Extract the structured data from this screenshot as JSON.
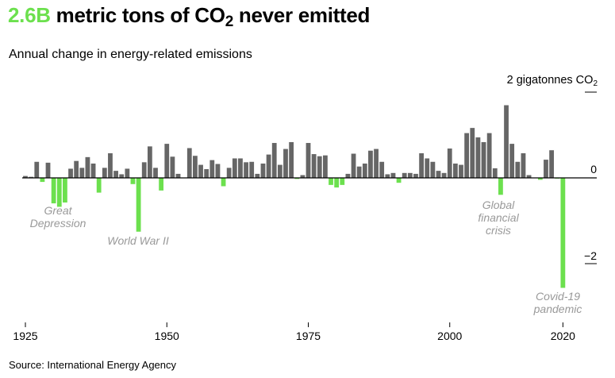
{
  "title": {
    "accent": "2.6B",
    "text": " metric tons of CO",
    "sub": "2",
    "tail": " never emitted"
  },
  "subtitle": "Annual change in energy-related emissions",
  "unit_label": {
    "text": "2 gigatonnes CO",
    "sub": "2"
  },
  "source": "Source: International Energy Agency",
  "colors": {
    "positive": "#666666",
    "negative": "#6ce04e",
    "annotation": "#999999"
  },
  "chart_data": {
    "type": "bar",
    "title": "2.6B metric tons of CO2 never emitted",
    "subtitle": "Annual change in energy-related emissions",
    "xlabel": "",
    "ylabel": "gigatonnes CO2",
    "ylim": [
      -2.9,
      2.2
    ],
    "xlim": [
      1925,
      2023
    ],
    "x_ticks": [
      1925,
      1950,
      1975,
      2000,
      2020
    ],
    "y_ticks": [
      {
        "value": 2,
        "label": "2 gigatonnes CO2"
      },
      {
        "value": 0,
        "label": "0"
      },
      {
        "value": -2,
        "label": "-2"
      }
    ],
    "grid": false,
    "x": [
      1925,
      1926,
      1927,
      1928,
      1929,
      1930,
      1931,
      1932,
      1933,
      1934,
      1935,
      1936,
      1937,
      1938,
      1939,
      1940,
      1941,
      1942,
      1943,
      1944,
      1945,
      1946,
      1947,
      1948,
      1949,
      1950,
      1951,
      1952,
      1953,
      1954,
      1955,
      1956,
      1957,
      1958,
      1959,
      1960,
      1961,
      1962,
      1963,
      1964,
      1965,
      1966,
      1967,
      1968,
      1969,
      1970,
      1971,
      1972,
      1973,
      1974,
      1975,
      1976,
      1977,
      1978,
      1979,
      1980,
      1981,
      1982,
      1983,
      1984,
      1985,
      1986,
      1987,
      1988,
      1989,
      1990,
      1991,
      1992,
      1993,
      1994,
      1995,
      1996,
      1997,
      1998,
      1999,
      2000,
      2001,
      2002,
      2003,
      2004,
      2005,
      2006,
      2007,
      2008,
      2009,
      2010,
      2011,
      2012,
      2013,
      2014,
      2015,
      2016,
      2017,
      2018,
      2019,
      2020
    ],
    "values": [
      0.05,
      0.03,
      0.38,
      -0.1,
      0.36,
      -0.6,
      -0.68,
      -0.58,
      0.22,
      0.4,
      0.24,
      0.49,
      0.34,
      -0.35,
      0.24,
      0.58,
      0.17,
      0.09,
      0.22,
      -0.15,
      -1.26,
      0.37,
      0.74,
      0.24,
      -0.3,
      0.8,
      0.5,
      0.1,
      0.0,
      0.7,
      0.52,
      0.31,
      0.21,
      0.42,
      0.33,
      -0.2,
      0.24,
      0.46,
      0.46,
      0.37,
      0.38,
      0.1,
      0.34,
      0.55,
      0.82,
      0.31,
      0.68,
      0.84,
      -0.03,
      0.07,
      0.82,
      0.56,
      0.51,
      0.53,
      -0.17,
      -0.23,
      -0.17,
      0.1,
      0.57,
      0.27,
      0.34,
      0.64,
      0.68,
      0.38,
      0.09,
      0.12,
      -0.12,
      0.12,
      0.12,
      0.1,
      0.58,
      0.46,
      0.38,
      0.17,
      0.12,
      0.69,
      0.34,
      0.31,
      1.05,
      1.17,
      0.95,
      0.84,
      1.05,
      0.23,
      -0.4,
      1.7,
      0.8,
      0.38,
      0.58,
      0.07,
      0.0,
      -0.05,
      0.43,
      0.65,
      -0.02,
      -2.57
    ],
    "annotations": [
      {
        "year": 1931,
        "lines": [
          "Great",
          "Depression"
        ]
      },
      {
        "year": 1945,
        "lines": [
          "World War II"
        ]
      },
      {
        "year": 2009,
        "lines": [
          "Global",
          "financial",
          "crisis"
        ]
      },
      {
        "year": 2020,
        "lines": [
          "Covid-19",
          "pandemic"
        ]
      }
    ]
  }
}
